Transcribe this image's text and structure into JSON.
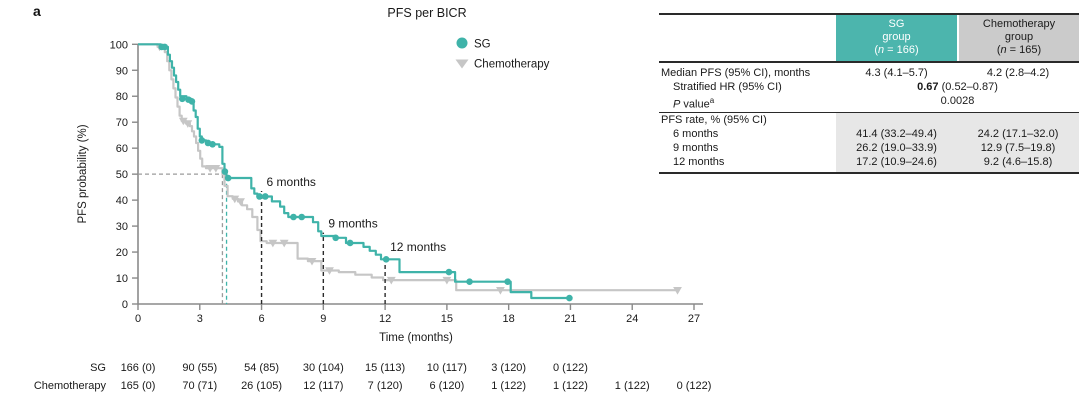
{
  "panel_label": "a",
  "colors": {
    "sg": "#3fb3a9",
    "sg_header": "#4cb5ad",
    "chemo": "#c6c6c6",
    "chemo_header": "#cbcbcb",
    "shade": "#e7e7e7",
    "axis": "#8a8a8a",
    "text": "#1a1a1a",
    "dash_gray": "#9b9b9b",
    "dash_black": "#2b2b2b"
  },
  "chart_data": {
    "type": "line",
    "variant": "kaplan_meier_step",
    "title": "PFS per BICR",
    "xlabel": "Time (months)",
    "ylabel": "PFS probability (%)",
    "xlim": [
      0,
      27
    ],
    "ylim": [
      0,
      100
    ],
    "xticks": [
      0,
      3,
      6,
      9,
      12,
      15,
      18,
      21,
      24,
      27
    ],
    "yticks": [
      0,
      10,
      20,
      30,
      40,
      50,
      60,
      70,
      80,
      90,
      100
    ],
    "grid": false,
    "legend_position": "top-right-inside",
    "series": [
      {
        "name": "Chemotherapy",
        "color": "#c6c6c6",
        "marker": "triangle_down",
        "median_months": 4.2,
        "steps": [
          [
            0,
            100
          ],
          [
            0.95,
            99
          ],
          [
            1.3,
            97
          ],
          [
            1.42,
            93.5
          ],
          [
            1.52,
            90
          ],
          [
            1.62,
            86.5
          ],
          [
            1.72,
            83
          ],
          [
            1.82,
            79.5
          ],
          [
            1.92,
            76
          ],
          [
            2.02,
            72.5
          ],
          [
            2.12,
            70.5
          ],
          [
            2.32,
            69.5
          ],
          [
            2.52,
            68.5
          ],
          [
            2.62,
            66.5
          ],
          [
            2.72,
            64.5
          ],
          [
            2.82,
            62
          ],
          [
            2.92,
            59
          ],
          [
            3.02,
            56
          ],
          [
            3.12,
            53
          ],
          [
            3.3,
            52.3
          ],
          [
            4.1,
            50
          ],
          [
            4.2,
            45.5
          ],
          [
            4.35,
            41.5
          ],
          [
            4.6,
            40.5
          ],
          [
            4.85,
            39.5
          ],
          [
            5.05,
            38
          ],
          [
            5.3,
            36.5
          ],
          [
            5.55,
            33.5
          ],
          [
            5.8,
            28.5
          ],
          [
            5.95,
            24.2
          ],
          [
            6.25,
            23.5
          ],
          [
            7.75,
            17.5
          ],
          [
            8.25,
            16.5
          ],
          [
            8.9,
            12.9
          ],
          [
            9.75,
            12.3
          ],
          [
            10.55,
            11.3
          ],
          [
            11.35,
            10.2
          ],
          [
            11.9,
            9.2
          ],
          [
            15.45,
            5.3
          ],
          [
            26.2,
            5.3
          ]
        ],
        "censor_marks": [
          [
            1.05,
            99
          ],
          [
            2.2,
            70.5
          ],
          [
            2.42,
            69.5
          ],
          [
            3.5,
            52.3
          ],
          [
            3.78,
            52.3
          ],
          [
            4.7,
            40.5
          ],
          [
            4.98,
            39.5
          ],
          [
            6.55,
            23.5
          ],
          [
            7.1,
            23.5
          ],
          [
            8.45,
            16.5
          ],
          [
            9.3,
            12.9
          ],
          [
            12.3,
            9.2
          ],
          [
            15.0,
            9.2
          ],
          [
            17.6,
            5.3
          ],
          [
            26.2,
            5.3
          ]
        ]
      },
      {
        "name": "SG",
        "color": "#3fb3a9",
        "marker": "circle",
        "median_months": 4.3,
        "steps": [
          [
            0,
            100
          ],
          [
            1.1,
            99
          ],
          [
            1.45,
            96
          ],
          [
            1.55,
            93.5
          ],
          [
            1.65,
            91
          ],
          [
            1.75,
            88
          ],
          [
            1.85,
            85.5
          ],
          [
            1.95,
            82.5
          ],
          [
            2.05,
            80
          ],
          [
            2.35,
            79
          ],
          [
            2.6,
            78
          ],
          [
            2.7,
            74.5
          ],
          [
            2.8,
            72
          ],
          [
            2.9,
            67.5
          ],
          [
            3.0,
            64.5
          ],
          [
            3.1,
            63
          ],
          [
            3.3,
            62
          ],
          [
            3.65,
            61.5
          ],
          [
            3.95,
            60.5
          ],
          [
            4.1,
            54
          ],
          [
            4.2,
            51
          ],
          [
            4.3,
            48.5
          ],
          [
            5.5,
            44.5
          ],
          [
            5.65,
            42.5
          ],
          [
            5.8,
            41.4
          ],
          [
            6.5,
            39.5
          ],
          [
            6.9,
            37.5
          ],
          [
            7.1,
            35
          ],
          [
            7.3,
            33.5
          ],
          [
            8.5,
            31.5
          ],
          [
            8.75,
            28
          ],
          [
            8.9,
            26.2
          ],
          [
            9.55,
            25.5
          ],
          [
            10.1,
            23.5
          ],
          [
            10.95,
            22
          ],
          [
            11.25,
            20.5
          ],
          [
            11.55,
            19
          ],
          [
            11.8,
            17.2
          ],
          [
            12.7,
            12.3
          ],
          [
            15.4,
            8.6
          ],
          [
            18.1,
            4.6
          ],
          [
            19.1,
            2.3
          ],
          [
            20.95,
            2.3
          ]
        ],
        "censor_marks": [
          [
            1.15,
            99
          ],
          [
            1.3,
            99
          ],
          [
            2.15,
            79
          ],
          [
            2.45,
            78.7
          ],
          [
            2.62,
            78
          ],
          [
            3.1,
            63
          ],
          [
            3.4,
            62
          ],
          [
            3.62,
            61.5
          ],
          [
            4.22,
            51
          ],
          [
            4.38,
            48.5
          ],
          [
            5.9,
            41.4
          ],
          [
            6.18,
            41.4
          ],
          [
            7.55,
            33.5
          ],
          [
            7.95,
            33.5
          ],
          [
            9.6,
            25.5
          ],
          [
            10.3,
            23.5
          ],
          [
            12.05,
            17.2
          ],
          [
            15.1,
            12.3
          ],
          [
            16.1,
            8.6
          ],
          [
            17.95,
            8.6
          ],
          [
            20.95,
            2.3
          ]
        ]
      }
    ],
    "legend": [
      {
        "label": "SG",
        "marker": "circle",
        "color": "#3fb3a9"
      },
      {
        "label": "Chemotherapy",
        "marker": "triangle_down",
        "color": "#c6c6c6"
      }
    ],
    "annotations": {
      "median_crosshair": {
        "y_percent": 50,
        "chemo_x": 4.1,
        "sg_x": 4.3
      },
      "milestones": [
        {
          "x": 6,
          "label": "6 months",
          "line_top_percent": 43.5
        },
        {
          "x": 9,
          "label": "9 months",
          "line_top_percent": 27.5
        },
        {
          "x": 12,
          "label": "12 months",
          "line_top_percent": 18.5
        }
      ]
    }
  },
  "risk_table": {
    "rows": [
      {
        "label": "SG",
        "values": [
          "166 (0)",
          "90 (55)",
          "54 (85)",
          "30 (104)",
          "15 (113)",
          "10 (117)",
          "3 (120)",
          "0 (122)"
        ]
      },
      {
        "label": "Chemotherapy",
        "values": [
          "165 (0)",
          "70 (71)",
          "26 (105)",
          "12 (117)",
          "7 (120)",
          "6 (120)",
          "1 (122)",
          "1 (122)",
          "1 (122)",
          "0 (122)"
        ]
      }
    ]
  },
  "stats_table": {
    "header": {
      "sg": {
        "line1": "SG",
        "line2": "group",
        "n_open": "(",
        "n_italic": "n",
        "n_close": " = 166)"
      },
      "chemo": {
        "line1": "Chemotherapy",
        "line2": "group",
        "n_open": "(",
        "n_italic": "n",
        "n_close": " = 165)"
      }
    },
    "median_row": {
      "label": "Median PFS (95% CI), months",
      "sg": "4.3 (4.1–5.7)",
      "chemo": "4.2 (2.8–4.2)"
    },
    "hr_row": {
      "label": "Stratified HR (95% CI)",
      "value_bold": "0.67",
      "value_rest": " (0.52–0.87)"
    },
    "p_row": {
      "label_italic": "P",
      "label_rest": " value",
      "label_sup": "a",
      "value": "0.0028"
    },
    "rate_section_label": "PFS rate, % (95% CI)",
    "rate_rows": [
      {
        "label": "6 months",
        "sg": "41.4 (33.2–49.4)",
        "chemo": "24.2 (17.1–32.0)"
      },
      {
        "label": "9 months",
        "sg": "26.2 (19.0–33.9)",
        "chemo": "12.9 (7.5–19.8)"
      },
      {
        "label": "12 months",
        "sg": "17.2 (10.9–24.6)",
        "chemo": "9.2 (4.6–15.8)"
      }
    ]
  }
}
